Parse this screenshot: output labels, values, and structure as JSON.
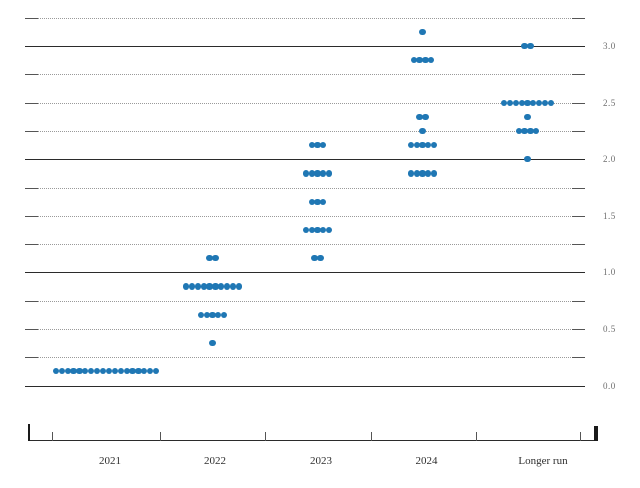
{
  "chart_data": {
    "type": "scatter",
    "subtype": "fomc-dot-plot",
    "categories": [
      "2021",
      "2022",
      "2023",
      "2024",
      "Longer run"
    ],
    "y_axis": {
      "tick_labels": [
        "3.0",
        "2.5",
        "2.0",
        "1.5",
        "1.0",
        "0.5",
        "0.0"
      ],
      "tick_values": [
        3.0,
        2.5,
        2.0,
        1.5,
        1.0,
        0.5,
        0.0
      ],
      "range": [
        0.0,
        3.25
      ],
      "solid_gridlines": [
        3.0,
        2.0,
        1.0,
        0.0
      ],
      "dotted_gridlines": [
        3.25,
        2.75,
        2.5,
        2.25,
        1.75,
        1.5,
        1.25,
        0.75,
        0.5,
        0.25
      ],
      "label_side": "right"
    },
    "series": [
      {
        "category": "2021",
        "dots": [
          {
            "value": 0.125,
            "count": 18
          }
        ]
      },
      {
        "category": "2022",
        "dots": [
          {
            "value": 1.125,
            "count": 2
          },
          {
            "value": 0.875,
            "count": 10
          },
          {
            "value": 0.625,
            "count": 5
          },
          {
            "value": 0.375,
            "count": 1
          }
        ]
      },
      {
        "category": "2023",
        "dots": [
          {
            "value": 2.125,
            "count": 3
          },
          {
            "value": 1.875,
            "count": 5
          },
          {
            "value": 1.625,
            "count": 3
          },
          {
            "value": 1.375,
            "count": 5
          },
          {
            "value": 1.125,
            "count": 2
          }
        ]
      },
      {
        "category": "2024",
        "dots": [
          {
            "value": 3.125,
            "count": 1
          },
          {
            "value": 2.875,
            "count": 4
          },
          {
            "value": 2.375,
            "count": 2
          },
          {
            "value": 2.25,
            "count": 1
          },
          {
            "value": 2.125,
            "count": 5
          },
          {
            "value": 1.875,
            "count": 5
          }
        ]
      },
      {
        "category": "Longer run",
        "dots": [
          {
            "value": 3.0,
            "count": 2
          },
          {
            "value": 2.5,
            "count": 9
          },
          {
            "value": 2.375,
            "count": 1
          },
          {
            "value": 2.25,
            "count": 4
          },
          {
            "value": 2.0,
            "count": 1
          }
        ]
      }
    ],
    "dot_color": "#1f77b4",
    "grid_on": true,
    "legend": "none"
  }
}
